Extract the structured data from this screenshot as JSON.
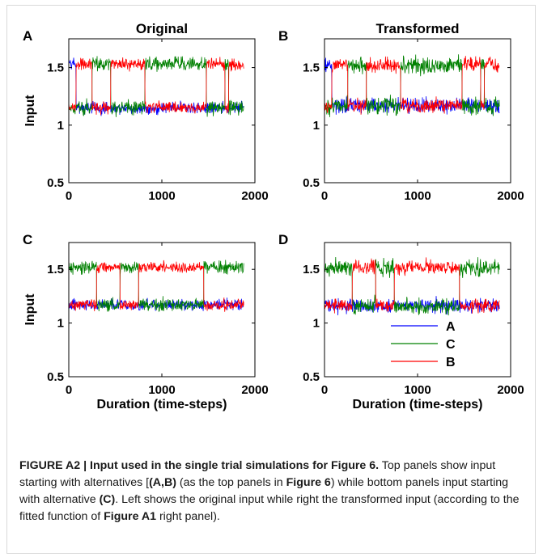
{
  "chart_data": [
    {
      "panel": "A",
      "title": "Original",
      "type": "line",
      "xlim": [
        0,
        2000
      ],
      "ylim": [
        0.5,
        1.75
      ],
      "xticks": [
        "0",
        "1000",
        "2000"
      ],
      "yticks": [
        "0.5",
        "1",
        "1.5"
      ],
      "ylabel": "Input",
      "xlabel": "",
      "top_level": 1.53,
      "bottom_level": 1.15,
      "noise": 0.055,
      "length": 1880,
      "segments": [
        {
          "from": 0,
          "to": 80,
          "top": "A"
        },
        {
          "from": 80,
          "to": 250,
          "top": "B"
        },
        {
          "from": 250,
          "to": 450,
          "top": "C"
        },
        {
          "from": 450,
          "to": 820,
          "top": "B"
        },
        {
          "from": 820,
          "to": 1480,
          "top": "C"
        },
        {
          "from": 1480,
          "to": 1680,
          "top": "B"
        },
        {
          "from": 1680,
          "to": 1720,
          "top": "C"
        },
        {
          "from": 1720,
          "to": 1880,
          "top": "B"
        }
      ]
    },
    {
      "panel": "B",
      "title": "Transformed",
      "type": "line",
      "xlim": [
        0,
        2000
      ],
      "ylim": [
        0.5,
        1.75
      ],
      "xticks": [
        "0",
        "1000",
        "2000"
      ],
      "yticks": [
        "0.5",
        "1",
        "1.5"
      ],
      "ylabel": "",
      "xlabel": "",
      "top_level": 1.52,
      "bottom_level": 1.17,
      "noise": 0.07,
      "length": 1880,
      "segments": [
        {
          "from": 0,
          "to": 80,
          "top": "A"
        },
        {
          "from": 80,
          "to": 250,
          "top": "B"
        },
        {
          "from": 250,
          "to": 450,
          "top": "C"
        },
        {
          "from": 450,
          "to": 820,
          "top": "B"
        },
        {
          "from": 820,
          "to": 1480,
          "top": "C"
        },
        {
          "from": 1480,
          "to": 1680,
          "top": "B"
        },
        {
          "from": 1680,
          "to": 1720,
          "top": "C"
        },
        {
          "from": 1720,
          "to": 1880,
          "top": "B"
        }
      ]
    },
    {
      "panel": "C",
      "title": "",
      "type": "line",
      "xlim": [
        0,
        2000
      ],
      "ylim": [
        0.5,
        1.75
      ],
      "xticks": [
        "0",
        "1000",
        "2000"
      ],
      "yticks": [
        "0.5",
        "1",
        "1.5"
      ],
      "ylabel": "Input",
      "xlabel": "Duration (time-steps)",
      "top_level": 1.52,
      "bottom_level": 1.17,
      "noise": 0.055,
      "length": 1880,
      "segments": [
        {
          "from": 0,
          "to": 300,
          "top": "C"
        },
        {
          "from": 300,
          "to": 550,
          "top": "B"
        },
        {
          "from": 550,
          "to": 750,
          "top": "C"
        },
        {
          "from": 750,
          "to": 1450,
          "top": "B"
        },
        {
          "from": 1450,
          "to": 1880,
          "top": "C"
        }
      ]
    },
    {
      "panel": "D",
      "title": "",
      "type": "line",
      "xlim": [
        0,
        2000
      ],
      "ylim": [
        0.5,
        1.75
      ],
      "xticks": [
        "0",
        "1000",
        "2000"
      ],
      "yticks": [
        "0.5",
        "1",
        "1.5"
      ],
      "ylabel": "",
      "xlabel": "Duration (time-steps)",
      "top_level": 1.52,
      "bottom_level": 1.16,
      "noise": 0.07,
      "length": 1880,
      "segments": [
        {
          "from": 0,
          "to": 300,
          "top": "C"
        },
        {
          "from": 300,
          "to": 550,
          "top": "B"
        },
        {
          "from": 550,
          "to": 750,
          "top": "C"
        },
        {
          "from": 750,
          "to": 1450,
          "top": "B"
        },
        {
          "from": 1450,
          "to": 1880,
          "top": "C"
        }
      ],
      "legend": {
        "placement": "lower-right",
        "entries": [
          {
            "name": "A",
            "color": "#0000ff"
          },
          {
            "name": "C",
            "color": "#008000"
          },
          {
            "name": "B",
            "color": "#ff0000"
          }
        ]
      }
    }
  ],
  "series_colors": {
    "A": "#0000ff",
    "B": "#ff0000",
    "C": "#008000"
  },
  "caption": {
    "label": "FIGURE A2 | Input used in the single trial simulations for Figure 6.",
    "t1": " Top panels show input starting with alternatives [",
    "b1": "(A,B)",
    "t2": " (as the top panels in ",
    "b2": "Figure 6",
    "t3": ") while bottom panels input starting with alternative ",
    "b3": "(C)",
    "t4": ". Left shows the original input while right the transformed input (according to the fitted function of ",
    "b4": "Figure A1",
    "t5": " right panel)."
  }
}
